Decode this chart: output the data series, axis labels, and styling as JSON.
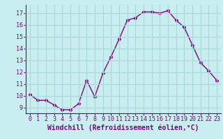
{
  "x": [
    0,
    1,
    2,
    3,
    4,
    5,
    6,
    7,
    8,
    9,
    10,
    11,
    12,
    13,
    14,
    15,
    16,
    17,
    18,
    19,
    20,
    21,
    22,
    23
  ],
  "y": [
    10.1,
    9.6,
    9.6,
    9.2,
    8.8,
    8.8,
    9.3,
    11.3,
    9.9,
    11.9,
    13.3,
    14.8,
    16.4,
    16.6,
    17.1,
    17.1,
    17.0,
    17.2,
    16.4,
    15.8,
    14.3,
    12.8,
    12.1,
    11.3
  ],
  "line_color": "#800080",
  "marker": "D",
  "marker_size": 2.5,
  "bg_color": "#c8eef0",
  "grid_color": "#a8d8dc",
  "xlabel": "Windchill (Refroidissement éolien,°C)",
  "xlabel_color": "#800080",
  "tick_color": "#800080",
  "xlim": [
    -0.5,
    23.5
  ],
  "ylim": [
    8.5,
    17.7
  ],
  "yticks": [
    9,
    10,
    11,
    12,
    13,
    14,
    15,
    16,
    17
  ],
  "xticks": [
    0,
    1,
    2,
    3,
    4,
    5,
    6,
    7,
    8,
    9,
    10,
    11,
    12,
    13,
    14,
    15,
    16,
    17,
    18,
    19,
    20,
    21,
    22,
    23
  ],
  "tick_fontsize": 6.0,
  "xlabel_fontsize": 7.0,
  "linewidth": 1.0
}
